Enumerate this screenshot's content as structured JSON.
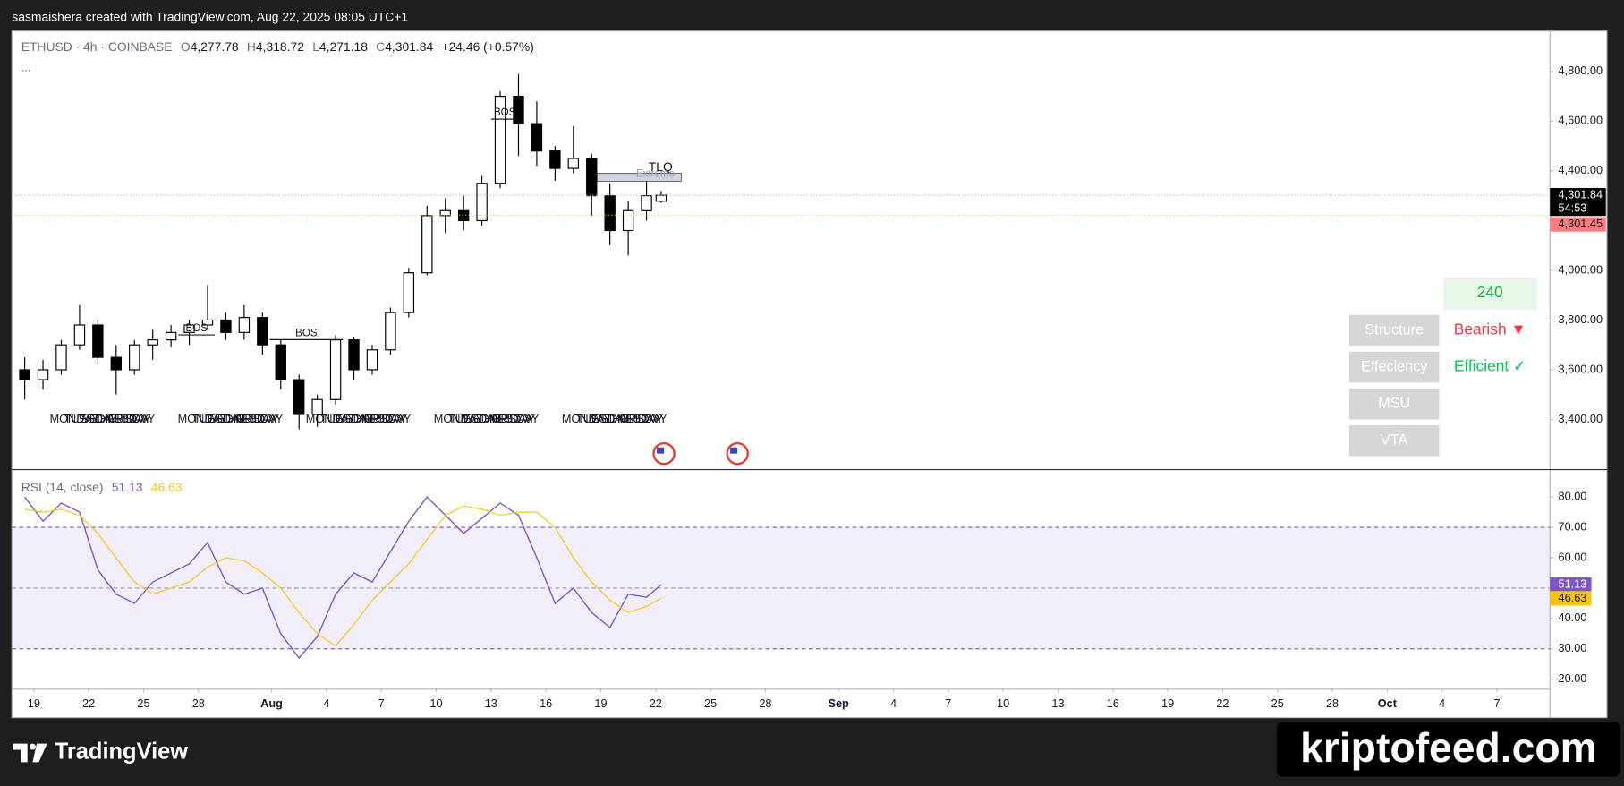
{
  "header": {
    "text": "sasmaishera created with TradingView.com, Aug 22, 2025 08:05 UTC+1"
  },
  "chart_data": [
    {
      "type": "candlestick",
      "symbol": "ETHUSD · 4h · COINBASE",
      "ohlc_legend": [
        {
          "key": "O",
          "value": "4,277.78"
        },
        {
          "key": "H",
          "value": "4,318.72"
        },
        {
          "key": "L",
          "value": "4,271.18"
        },
        {
          "key": "C",
          "value": "4,301.84"
        }
      ],
      "change": "+24.46 (+0.57%)",
      "more": "...",
      "x": [
        -0.5,
        0.5,
        1.5,
        2.5,
        3.5,
        4.5,
        5.5,
        6.5,
        7.5,
        8.5,
        9.5,
        10.5,
        11.5,
        12.5,
        13.5,
        14.5,
        15.5,
        16.5,
        17.5,
        18.5,
        19.5,
        20.5,
        21.5,
        22.5,
        23.5,
        24.5,
        25.5,
        26.5,
        27.5,
        28.5,
        29.5,
        30.5,
        31.5,
        32.5,
        33.5,
        34.3
      ],
      "open": [
        3600,
        3560,
        3600,
        3700,
        3780,
        3650,
        3600,
        3700,
        3720,
        3750,
        3780,
        3800,
        3750,
        3810,
        3700,
        3560,
        3420,
        3480,
        3720,
        3600,
        3680,
        3830,
        3990,
        4220,
        4240,
        4200,
        4350,
        4700,
        4590,
        4480,
        4410,
        4450,
        4300,
        4160,
        4240,
        4277.78
      ],
      "high": [
        3650,
        3640,
        3720,
        3860,
        3800,
        3700,
        3720,
        3760,
        3780,
        3800,
        3940,
        3830,
        3860,
        3830,
        3720,
        3580,
        3500,
        3740,
        3730,
        3700,
        3850,
        4010,
        4260,
        4290,
        4300,
        4380,
        4720,
        4790,
        4680,
        4500,
        4580,
        4470,
        4350,
        4280,
        4370,
        4318.72
      ],
      "low": [
        3480,
        3520,
        3580,
        3680,
        3620,
        3500,
        3580,
        3640,
        3690,
        3700,
        3760,
        3720,
        3720,
        3660,
        3520,
        3360,
        3370,
        3460,
        3560,
        3580,
        3660,
        3810,
        3980,
        4150,
        4160,
        4180,
        4330,
        4460,
        4420,
        4360,
        4390,
        4220,
        4100,
        4060,
        4200,
        4271.18
      ],
      "close": [
        3560,
        3600,
        3700,
        3780,
        3650,
        3600,
        3700,
        3720,
        3750,
        3780,
        3800,
        3750,
        3810,
        3700,
        3560,
        3420,
        3480,
        3720,
        3600,
        3680,
        3830,
        3990,
        4220,
        4240,
        4200,
        4350,
        4700,
        4590,
        4480,
        4410,
        4450,
        4300,
        4160,
        4240,
        4300,
        4301.84
      ],
      "up_color": "#ffffff",
      "down_color": "#000000",
      "wick_color": "#000000",
      "xlim": [
        -1.2,
        82.9
      ],
      "xticks": [
        {
          "value": 0,
          "label": "19"
        },
        {
          "value": 3,
          "label": "22"
        },
        {
          "value": 6,
          "label": "25"
        },
        {
          "value": 9,
          "label": "28"
        },
        {
          "value": 13,
          "label": "Aug"
        },
        {
          "value": 16,
          "label": "4"
        },
        {
          "value": 19,
          "label": "7"
        },
        {
          "value": 22,
          "label": "10"
        },
        {
          "value": 25,
          "label": "13"
        },
        {
          "value": 28,
          "label": "16"
        },
        {
          "value": 31,
          "label": "19"
        },
        {
          "value": 34,
          "label": "22"
        },
        {
          "value": 37,
          "label": "25"
        },
        {
          "value": 40,
          "label": "28"
        },
        {
          "value": 44,
          "label": "Sep"
        },
        {
          "value": 47,
          "label": "4"
        },
        {
          "value": 50,
          "label": "7"
        },
        {
          "value": 53,
          "label": "10"
        },
        {
          "value": 56,
          "label": "13"
        },
        {
          "value": 59,
          "label": "16"
        },
        {
          "value": 62,
          "label": "19"
        },
        {
          "value": 65,
          "label": "22"
        },
        {
          "value": 68,
          "label": "25"
        },
        {
          "value": 71,
          "label": "28"
        },
        {
          "value": 74,
          "label": "Oct"
        },
        {
          "value": 77,
          "label": "4"
        },
        {
          "value": 80,
          "label": "7"
        }
      ],
      "ylim": [
        3200,
        4962.5
      ],
      "yticks": [
        {
          "value": 3400,
          "label": "3,400.00"
        },
        {
          "value": 3600,
          "label": "3,600.00"
        },
        {
          "value": 3800,
          "label": "3,800.00"
        },
        {
          "value": 4000,
          "label": "4,000.00"
        },
        {
          "value": 4400,
          "label": "4,400.00"
        },
        {
          "value": 4600,
          "label": "4,600.00"
        },
        {
          "value": 4800,
          "label": "4,800.00"
        }
      ],
      "price_labels": {
        "last": {
          "value": 4301.84,
          "label": "4,301.84"
        },
        "countdown": "54:53",
        "bid": {
          "value": 4301.45,
          "label": "4,301.45"
        }
      },
      "annotations": [
        {
          "text": "BOS",
          "level": 3740,
          "x": [
            7.9,
            9.9
          ]
        },
        {
          "text": "BOS",
          "level": 3721,
          "x": [
            12.9,
            16.9
          ]
        },
        {
          "text": "BOS",
          "level": 4608,
          "x": [
            25,
            26.5
          ]
        }
      ],
      "zone": {
        "text": "TLQ",
        "subtext": "Extreme",
        "level": 4387,
        "x": [
          30.8,
          35.4
        ]
      },
      "sessions": {
        "names": [
          "MONDAY",
          "TUESDAY",
          "WEDNESDAY",
          "THURSDAY",
          "FRIDAY"
        ],
        "week_starts": [
          2,
          9,
          16,
          23,
          30
        ]
      }
    },
    {
      "type": "line",
      "title": "RSI (14, close)",
      "x": [
        -0.5,
        0.5,
        1.5,
        2.5,
        3.5,
        4.5,
        5.5,
        6.5,
        7.5,
        8.5,
        9.5,
        10.5,
        11.5,
        12.5,
        13.5,
        14.5,
        15.5,
        16.5,
        17.5,
        18.5,
        19.5,
        20.5,
        21.5,
        22.5,
        23.5,
        24.5,
        25.5,
        26.5,
        27.5,
        28.5,
        29.5,
        30.5,
        31.5,
        32.5,
        33.5,
        34.3
      ],
      "series": [
        {
          "color": "#7e57c2",
          "values": [
            80,
            72,
            78,
            75,
            56,
            48,
            45,
            52,
            55,
            58,
            65,
            52,
            48,
            50,
            35,
            27,
            34,
            48,
            55,
            52,
            62,
            72,
            80,
            74,
            68,
            73,
            78,
            74,
            60,
            45,
            50,
            42,
            37,
            48,
            47,
            51.13
          ]
        },
        {
          "color": "#f5c518",
          "values": [
            76,
            75,
            76,
            74,
            68,
            60,
            52,
            48,
            50,
            52,
            57,
            60,
            59,
            55,
            50,
            42,
            35,
            31,
            38,
            46,
            52,
            58,
            66,
            74,
            77,
            76,
            74,
            75,
            75,
            70,
            60,
            52,
            46,
            42,
            44,
            46.63
          ]
        }
      ],
      "ylim": [
        16.9,
        88.5
      ],
      "yticks": [
        {
          "value": 20,
          "label": "20.00"
        },
        {
          "value": 30,
          "label": "30.00"
        },
        {
          "value": 40,
          "label": "40.00"
        },
        {
          "value": 60,
          "label": "60.00"
        },
        {
          "value": 70,
          "label": "70.00"
        },
        {
          "value": 80,
          "label": "80.00"
        }
      ],
      "bands": [
        30,
        70
      ],
      "midline": 50,
      "band_color": "#7e57c2"
    }
  ],
  "table": {
    "timeframe": "240",
    "rows": [
      {
        "label": "Structure",
        "value": "Bearish ▼",
        "color": "#f23645"
      },
      {
        "label": "Effeciency",
        "value": "Efficient ✓",
        "color": "#00c853"
      },
      {
        "label": "MSU"
      },
      {
        "label": "VTA"
      }
    ]
  },
  "footer": {
    "brand": "TradingView",
    "watermark": "kriptofeed.com"
  }
}
